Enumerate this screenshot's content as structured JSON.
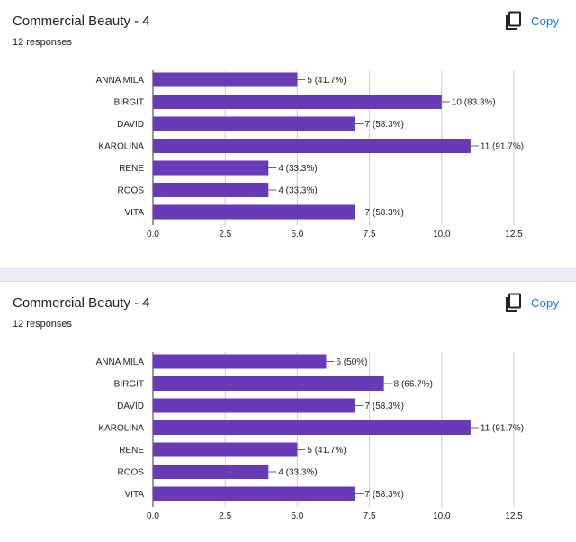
{
  "cards": [
    {
      "title": "Commercial Beauty - 4",
      "responses": "12 responses",
      "copy_label": "Copy",
      "copy_icon": "copy-icon"
    },
    {
      "title": "Commercial Beauty - 4",
      "responses": "12 responses",
      "copy_label": "Copy",
      "copy_icon": "copy-icon"
    }
  ],
  "colors": {
    "bar": "#673ab7",
    "accent": "#1a73e8",
    "divider": "#f0ebf8"
  },
  "chart_data": [
    {
      "type": "bar",
      "orientation": "horizontal",
      "categories": [
        "ANNA MILA",
        "BIRGIT",
        "DAVID",
        "KAROLINA",
        "RENE",
        "ROOS",
        "VITA"
      ],
      "values": [
        5,
        10,
        7,
        11,
        4,
        4,
        7
      ],
      "data_labels": [
        "5 (41.7%)",
        "10 (83.3%)",
        "7 (58.3%)",
        "11 (91.7%)",
        "4 (33.3%)",
        "4 (33.3%)",
        "7 (58.3%)"
      ],
      "xlim": [
        0,
        12.5
      ],
      "xticks": [
        "0.0",
        "2.5",
        "5.0",
        "7.5",
        "10.0",
        "12.5"
      ],
      "grid": true
    },
    {
      "type": "bar",
      "orientation": "horizontal",
      "categories": [
        "ANNA MILA",
        "BIRGIT",
        "DAVID",
        "KAROLINA",
        "RENE",
        "ROOS",
        "VITA"
      ],
      "values": [
        6,
        8,
        7,
        11,
        5,
        4,
        7
      ],
      "data_labels": [
        "6 (50%)",
        "8 (66.7%)",
        "7 (58.3%)",
        "11 (91.7%)",
        "5 (41.7%)",
        "4 (33.3%)",
        "7 (58.3%)"
      ],
      "xlim": [
        0,
        12.5
      ],
      "xticks": [
        "0.0",
        "2.5",
        "5.0",
        "7.5",
        "10.0",
        "12.5"
      ],
      "grid": true
    }
  ]
}
